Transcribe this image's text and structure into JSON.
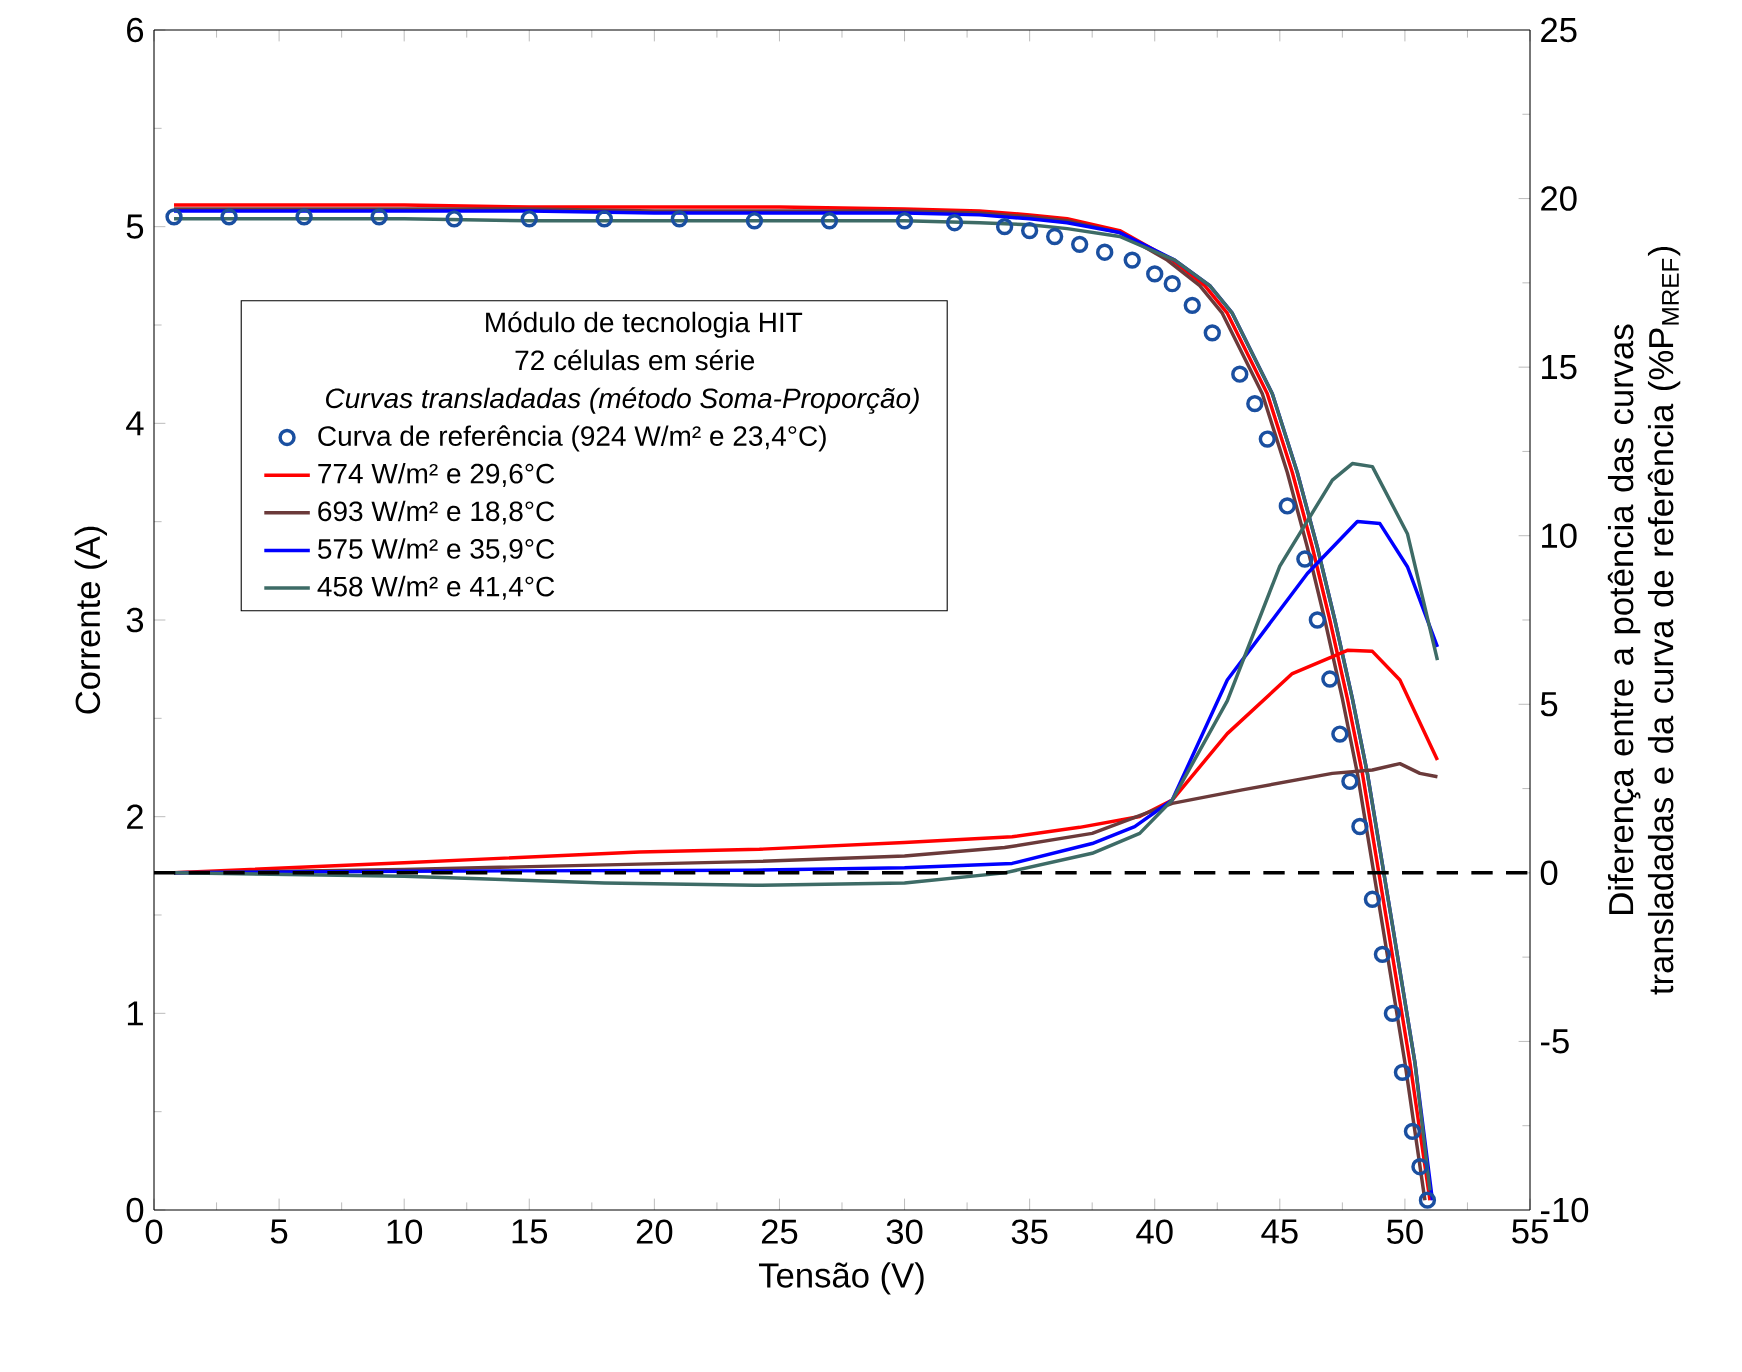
{
  "chart_data": {
    "type": "line",
    "xlabel": "Tensão (V)",
    "ylabel": "Corrente (A)",
    "y2label": "Diferença entre a potência das curvas transladadas e da curva de referência (%P$_{MREF}$)",
    "legend_title": "Módulo de tecnologia HIT",
    "annotations": [
      "72 células em série",
      "Curvas transladadas (método Soma-Proporção)"
    ],
    "legend": "left",
    "grid": false,
    "xlim": [
      0,
      55
    ],
    "xticks": [
      0,
      5,
      10,
      15,
      20,
      25,
      30,
      35,
      40,
      45,
      50,
      55
    ],
    "ylim": [
      0,
      6
    ],
    "yticks": [
      0,
      1,
      2,
      3,
      4,
      5,
      6
    ],
    "y2lim": [
      -10,
      25
    ],
    "y2ticks": [
      -10,
      -5,
      0,
      5,
      10,
      15,
      20,
      25
    ],
    "ref_lines": [
      {
        "axis": "y2",
        "value": 0,
        "color": "#000000",
        "line_style": "dashed"
      }
    ],
    "series": [
      {
        "name": "Curva de referência (924 W/m² e 23,4°C)",
        "type": "scatter",
        "marker": "circle",
        "color": "#1a4fa0",
        "x": [
          0.8,
          3,
          6,
          9,
          12,
          15,
          18,
          21,
          24,
          27,
          30,
          32,
          34,
          35,
          36,
          37,
          38,
          39.1,
          40,
          40.7,
          41.5,
          42.3,
          43.4,
          44,
          44.5,
          45.3,
          46,
          46.5,
          47,
          47.4,
          47.8,
          48.2,
          48.7,
          49.1,
          49.5,
          49.9,
          50.3,
          50.6,
          50.9
        ],
        "values": [
          5.05,
          5.05,
          5.05,
          5.05,
          5.04,
          5.04,
          5.04,
          5.04,
          5.03,
          5.03,
          5.03,
          5.02,
          5.0,
          4.98,
          4.95,
          4.91,
          4.87,
          4.83,
          4.76,
          4.71,
          4.6,
          4.46,
          4.25,
          4.1,
          3.92,
          3.58,
          3.31,
          3.0,
          2.7,
          2.42,
          2.18,
          1.95,
          1.58,
          1.3,
          1.0,
          0.7,
          0.4,
          0.22,
          0.05
        ]
      },
      {
        "name": "774 W/m² e 29,6°C",
        "color": "#ff0000",
        "x": [
          0.8,
          5,
          10,
          15,
          20,
          25,
          30,
          33,
          35,
          36.5,
          38.6,
          40.7,
          42,
          42.9,
          44.5,
          45.5,
          46.3,
          47,
          47.7,
          48.3,
          49.3,
          50.2,
          51
        ],
        "values": [
          5.11,
          5.11,
          5.11,
          5.1,
          5.1,
          5.1,
          5.09,
          5.08,
          5.06,
          5.04,
          4.98,
          4.83,
          4.7,
          4.56,
          4.15,
          3.75,
          3.37,
          3.0,
          2.6,
          2.22,
          1.45,
          0.75,
          0.05
        ]
      },
      {
        "name": "693 W/m² e 18,8°C",
        "color": "#6b3a3a",
        "x": [
          0.8,
          5,
          10,
          15,
          20,
          25,
          30,
          33,
          35,
          36.5,
          38.6,
          40.5,
          41.8,
          42.7,
          44.3,
          45.3,
          46.1,
          46.8,
          47.5,
          48.1,
          49.1,
          50,
          50.8
        ],
        "values": [
          5.09,
          5.09,
          5.09,
          5.09,
          5.08,
          5.08,
          5.08,
          5.07,
          5.05,
          5.03,
          4.97,
          4.83,
          4.7,
          4.56,
          4.15,
          3.75,
          3.37,
          3.0,
          2.6,
          2.22,
          1.45,
          0.75,
          0.05
        ]
      },
      {
        "name": "575 W/m² e 35,9°C",
        "color": "#0000ff",
        "x": [
          0.8,
          5,
          10,
          15,
          20,
          25,
          30,
          33,
          35,
          36.5,
          38.6,
          40.8,
          42.2,
          43.1,
          44.7,
          45.7,
          46.5,
          47.2,
          47.9,
          48.5,
          49.5,
          50.4,
          51.1
        ],
        "values": [
          5.08,
          5.08,
          5.08,
          5.08,
          5.07,
          5.07,
          5.07,
          5.06,
          5.04,
          5.02,
          4.97,
          4.83,
          4.7,
          4.56,
          4.15,
          3.75,
          3.37,
          3.0,
          2.6,
          2.22,
          1.45,
          0.75,
          0.05
        ]
      },
      {
        "name": "458 W/m² e 41,4°C",
        "color": "#3d6b66",
        "x": [
          0.8,
          5,
          10,
          15,
          20,
          25,
          30,
          33,
          35,
          36.5,
          38.6,
          40.8,
          42.2,
          43.1,
          44.7,
          45.7,
          46.5,
          47.2,
          47.9,
          48.5,
          49.5,
          50.4,
          51
        ],
        "values": [
          5.04,
          5.04,
          5.04,
          5.03,
          5.03,
          5.03,
          5.03,
          5.02,
          5.01,
          4.99,
          4.95,
          4.83,
          4.7,
          4.56,
          4.15,
          3.75,
          3.37,
          3.0,
          2.6,
          2.22,
          1.45,
          0.75,
          0.1
        ]
      },
      {
        "axis": "y2",
        "color": "#ff0000",
        "x": [
          0.8,
          10,
          19.4,
          24.2,
          30,
          34.3,
          37,
          39.4,
          40.7,
          42.9,
          45.5,
          47.7,
          48.7,
          49.8,
          51.3
        ],
        "values": [
          0,
          0.3,
          0.62,
          0.7,
          0.9,
          1.07,
          1.35,
          1.67,
          2.16,
          4.13,
          5.91,
          6.6,
          6.57,
          5.72,
          3.35
        ]
      },
      {
        "axis": "y2",
        "color": "#6b3a3a",
        "x": [
          0.8,
          10,
          24.2,
          30,
          34,
          37.5,
          40.7,
          43.5,
          47.1,
          48.7,
          49.8,
          50.6,
          51.3
        ],
        "values": [
          0,
          0.1,
          0.34,
          0.5,
          0.75,
          1.17,
          2.06,
          2.46,
          2.95,
          3.05,
          3.24,
          2.95,
          2.85
        ]
      },
      {
        "axis": "y2",
        "color": "#0000ff",
        "x": [
          0.8,
          10,
          24,
          30,
          34.3,
          37.5,
          39.2,
          40.7,
          42.9,
          46.1,
          48.1,
          49,
          50.1,
          51.3
        ],
        "values": [
          0,
          0.05,
          0.08,
          0.15,
          0.28,
          0.87,
          1.37,
          2.16,
          5.72,
          8.88,
          10.42,
          10.36,
          9.08,
          6.7
        ]
      },
      {
        "axis": "y2",
        "color": "#3d6b66",
        "x": [
          0.8,
          10,
          18,
          24,
          30,
          34,
          37.5,
          39.4,
          40.7,
          42.9,
          45,
          47.1,
          47.9,
          48.7,
          50.1,
          51.3
        ],
        "values": [
          0,
          -0.1,
          -0.3,
          -0.37,
          -0.3,
          0,
          0.58,
          1.17,
          2.16,
          5.1,
          9.1,
          11.65,
          12.14,
          12.05,
          10.06,
          6.31
        ]
      }
    ]
  }
}
